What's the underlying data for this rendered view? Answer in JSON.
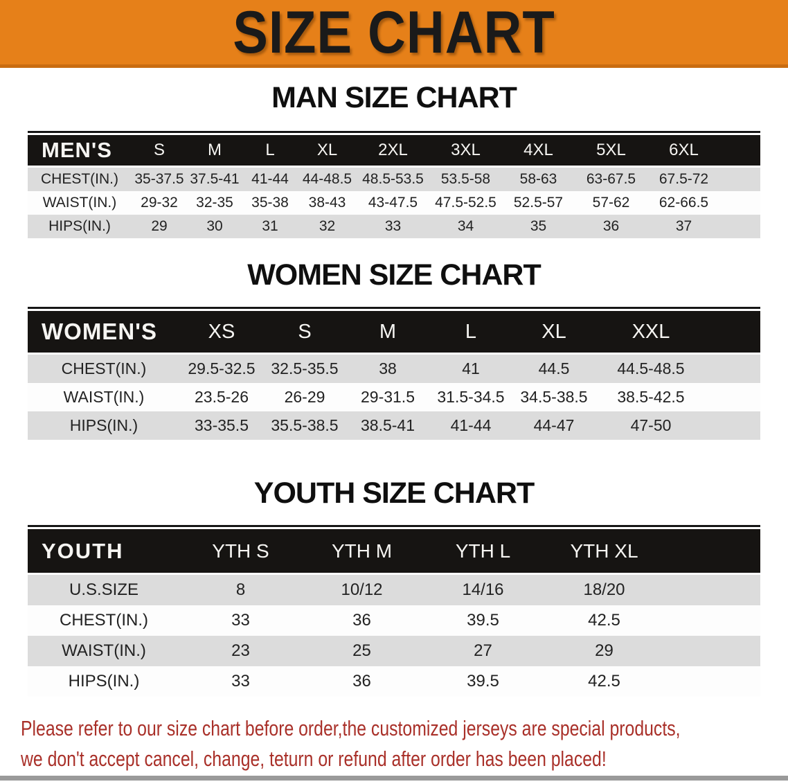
{
  "banner": {
    "title": "SIZE CHART",
    "bg_color": "#e68019",
    "text_color": "#1a1a1a"
  },
  "sections": [
    {
      "id": "men",
      "heading": "MAN SIZE CHART",
      "table": {
        "corner_label": "MEN'S",
        "columns": [
          "S",
          "M",
          "L",
          "XL",
          "2XL",
          "3XL",
          "4XL",
          "5XL",
          "6XL"
        ],
        "rows": [
          {
            "label": "CHEST(IN.)",
            "values": [
              "35-37.5",
              "37.5-41",
              "41-44",
              "44-48.5",
              "48.5-53.5",
              "53.5-58",
              "58-63",
              "63-67.5",
              "67.5-72"
            ]
          },
          {
            "label": "WAIST(IN.)",
            "values": [
              "29-32",
              "32-35",
              "35-38",
              "38-43",
              "43-47.5",
              "47.5-52.5",
              "52.5-57",
              "57-62",
              "62-66.5"
            ]
          },
          {
            "label": "HIPS(IN.)",
            "values": [
              "29",
              "30",
              "31",
              "32",
              "33",
              "34",
              "35",
              "36",
              "37"
            ]
          }
        ]
      }
    },
    {
      "id": "women",
      "heading": "WOMEN SIZE CHART",
      "table": {
        "corner_label": "WOMEN'S",
        "columns": [
          "XS",
          "S",
          "M",
          "L",
          "XL",
          "XXL"
        ],
        "rows": [
          {
            "label": "CHEST(IN.)",
            "values": [
              "29.5-32.5",
              "32.5-35.5",
              "38",
              "41",
              "44.5",
              "44.5-48.5"
            ]
          },
          {
            "label": "WAIST(IN.)",
            "values": [
              "23.5-26",
              "26-29",
              "29-31.5",
              "31.5-34.5",
              "34.5-38.5",
              "38.5-42.5"
            ]
          },
          {
            "label": "HIPS(IN.)",
            "values": [
              "33-35.5",
              "35.5-38.5",
              "38.5-41",
              "41-44",
              "44-47",
              "47-50"
            ]
          }
        ]
      }
    },
    {
      "id": "youth",
      "heading": "YOUTH SIZE CHART",
      "table": {
        "corner_label": "YOUTH",
        "columns": [
          "YTH S",
          "YTH M",
          "YTH L",
          "YTH XL"
        ],
        "rows": [
          {
            "label": "U.S.SIZE",
            "values": [
              "8",
              "10/12",
              "14/16",
              "18/20"
            ]
          },
          {
            "label": "CHEST(IN.)",
            "values": [
              "33",
              "36",
              "39.5",
              "42.5"
            ]
          },
          {
            "label": "WAIST(IN.)",
            "values": [
              "23",
              "25",
              "27",
              "29"
            ]
          },
          {
            "label": "HIPS(IN.)",
            "values": [
              "33",
              "36",
              "39.5",
              "42.5"
            ]
          }
        ]
      }
    }
  ],
  "footer": {
    "line1": "Please refer to our size chart before order,the customized jerseys are special products,",
    "line2": "we don't accept cancel, change, teturn or refund after order has been placed!",
    "text_color": "#a93029"
  },
  "colors": {
    "table_header_bg": "#161412",
    "row_gray": "#dcdcdc",
    "row_white": "#fdfdfd"
  }
}
